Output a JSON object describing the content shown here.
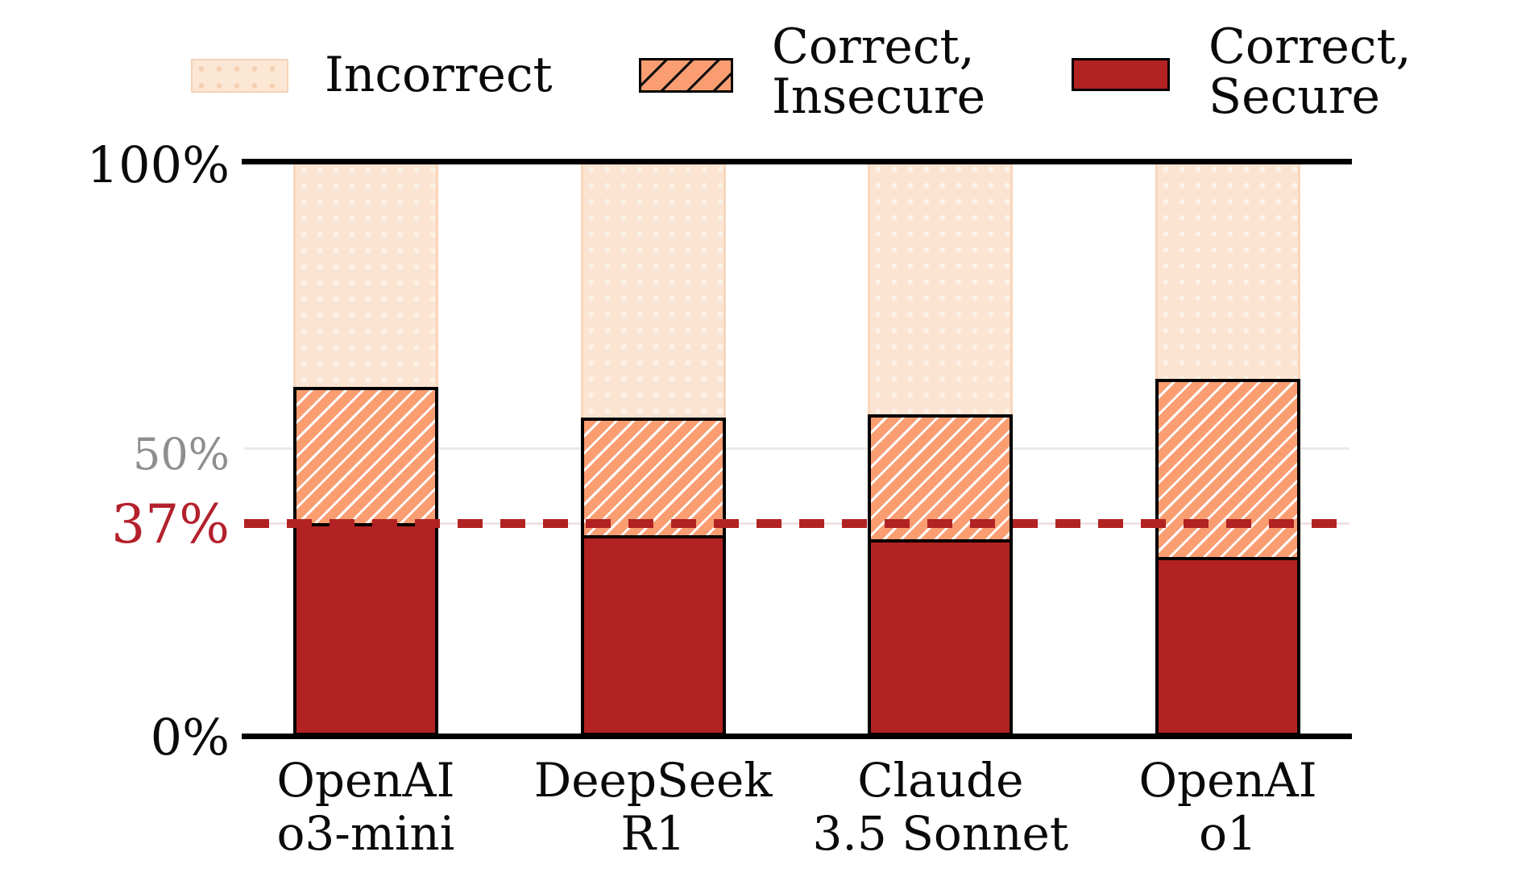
{
  "figure": {
    "background": "#ffffff"
  },
  "legend": {
    "position": "top",
    "items": [
      {
        "key": "incorrect",
        "label_lines": [
          "Incorrect"
        ]
      },
      {
        "key": "correct-insecure",
        "label_lines": [
          "Correct,",
          "Insecure"
        ]
      },
      {
        "key": "correct-secure",
        "label_lines": [
          "Correct,",
          "Secure"
        ]
      }
    ]
  },
  "y_axis": {
    "ticks": [
      {
        "label": "100%",
        "value": 100
      },
      {
        "label": "50%",
        "value": 50
      },
      {
        "label": "0%",
        "value": 0
      }
    ],
    "reference_tick": {
      "label": "37%",
      "value": 37
    }
  },
  "chart_data": {
    "type": "bar",
    "stacked": true,
    "title": "",
    "xlabel": "",
    "ylabel": "",
    "ylim": [
      0,
      100
    ],
    "unit": "%",
    "grid": "horizontal line at 50% only",
    "legend_position": "top",
    "categories": [
      "OpenAI o3-mini",
      "DeepSeek R1",
      "Claude 3.5 Sonnet",
      "OpenAI o1"
    ],
    "category_label_lines": [
      [
        "OpenAI",
        "o3-mini"
      ],
      [
        "DeepSeek",
        "R1"
      ],
      [
        "Claude",
        "3.5 Sonnet"
      ],
      [
        "OpenAI",
        "o1"
      ]
    ],
    "series": [
      {
        "name": "Correct, Secure",
        "key": "correct-secure",
        "color": "#b22222",
        "pattern": "solid",
        "values": [
          36.5,
          34.4,
          33.7,
          30.6
        ]
      },
      {
        "name": "Correct, Insecure",
        "key": "correct-insecure",
        "color": "#fa9e72",
        "pattern": "diagonal-hatch",
        "values": [
          24.3,
          21.0,
          22.3,
          31.6
        ]
      },
      {
        "name": "Incorrect",
        "key": "incorrect",
        "color": "#fce4d2",
        "pattern": "dots",
        "values": [
          39.2,
          44.6,
          44.0,
          37.8
        ]
      }
    ],
    "reference_line": {
      "value": 37,
      "label": "37%",
      "color": "#b22222",
      "style": "dashed"
    }
  },
  "colors": {
    "secure": "#b22222",
    "insecure": "#fa9e72",
    "incorrect": "#fce4d2",
    "reference": "#b3212c",
    "gridline": "#eaeaea",
    "axis": "#000000",
    "tick_50": "#8e8e8e"
  }
}
